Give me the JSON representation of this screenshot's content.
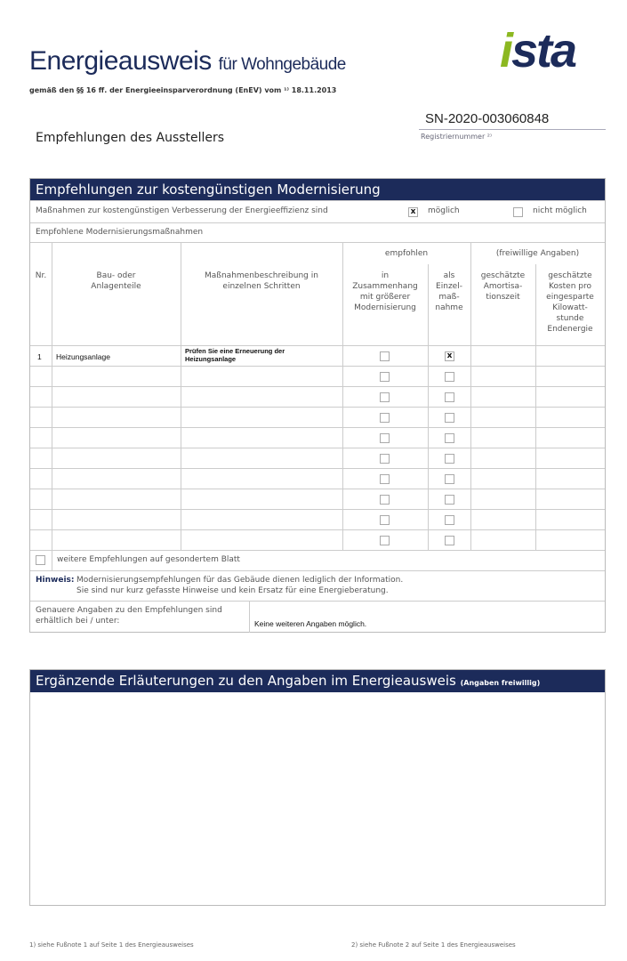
{
  "header": {
    "title_main": "Energieausweis",
    "title_rest": "für Wohngebäude",
    "subtitle": "gemäß den §§ 16 ff. der Energieeinsparverordnung (EnEV) vom ¹⁾ 18.11.2013",
    "logo": "ista",
    "registration_number": "SN-2020-003060848",
    "registration_label": "Registriernummer ²⁾",
    "section_title": "Empfehlungen des Ausstellers"
  },
  "recommendations": {
    "title": "Empfehlungen zur kostengünstigen Modernisierung",
    "question": "Maßnahmen zur kostengünstigen Verbesserung der Energieeffizienz sind",
    "option_possible": "möglich",
    "option_possible_checked": true,
    "option_not_possible": "nicht möglich",
    "option_not_possible_checked": false,
    "subheader": "Empfohlene Modernisierungsmaßnahmen",
    "columns": {
      "group_recommended": "empfohlen",
      "group_voluntary": "(freiwillige Angaben)",
      "nr": "Nr.",
      "component": "Bau- oder\nAnlagenteile",
      "description": "Maßnahmenbeschreibung in\neinzelnen Schritten",
      "in_context": "in\nZusammenhang\nmit größerer\nModernisierung",
      "single": "als\nEinzel-\nmaß-\nnahme",
      "payback": "geschätzte\nAmortisa-\ntionszeit",
      "cost": "geschätzte\nKosten pro\neingesparte\nKilowatt-\nstunde\nEndenergie"
    },
    "rows": [
      {
        "nr": "1",
        "component": "Heizungsanlage",
        "description": "Prüfen Sie eine Erneuerung der Heizungsanlage",
        "in_context": false,
        "single": true,
        "payback": "",
        "cost": ""
      },
      {
        "nr": "",
        "component": "",
        "description": "",
        "in_context": false,
        "single": false
      },
      {
        "nr": "",
        "component": "",
        "description": "",
        "in_context": false,
        "single": false
      },
      {
        "nr": "",
        "component": "",
        "description": "",
        "in_context": false,
        "single": false
      },
      {
        "nr": "",
        "component": "",
        "description": "",
        "in_context": false,
        "single": false
      },
      {
        "nr": "",
        "component": "",
        "description": "",
        "in_context": false,
        "single": false
      },
      {
        "nr": "",
        "component": "",
        "description": "",
        "in_context": false,
        "single": false
      },
      {
        "nr": "",
        "component": "",
        "description": "",
        "in_context": false,
        "single": false
      },
      {
        "nr": "",
        "component": "",
        "description": "",
        "in_context": false,
        "single": false
      },
      {
        "nr": "",
        "component": "",
        "description": "",
        "in_context": false,
        "single": false
      }
    ],
    "more_label": "weitere Empfehlungen auf gesondertem Blatt",
    "more_checked": false,
    "note_label": "Hinweis:",
    "note_line1": "Modernisierungsempfehlungen für das Gebäude dienen lediglich der Information.",
    "note_line2": "Sie sind nur kurz gefasste Hinweise und kein Ersatz für eine Energieberatung.",
    "details_label": "Genauere Angaben zu den Empfehlungen sind erhältlich bei / unter:",
    "details_value": "Keine weiteren Angaben möglich."
  },
  "explanations": {
    "title": "Ergänzende Erläuterungen zu den Angaben im Energieausweis",
    "title_note": "(Angaben freiwillig)",
    "content": ""
  },
  "footnotes": {
    "note1": "1) siehe Fußnote 1 auf Seite 1 des Energieausweises",
    "note2": "2) siehe Fußnote 2 auf Seite 1 des Energieausweises"
  },
  "colors": {
    "brand_navy": "#1c2b5a",
    "brand_green": "#8cb821"
  }
}
